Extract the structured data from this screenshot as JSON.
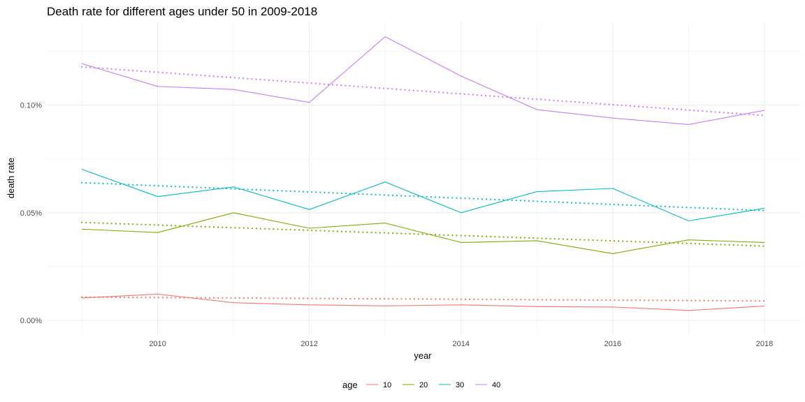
{
  "chart_data": {
    "type": "line",
    "title": "Death rate for different ages under 50 in 2009-2018",
    "xlabel": "year",
    "ylabel": "death rate",
    "xlim": [
      2009,
      2018
    ],
    "ylim": [
      0,
      0.00132
    ],
    "x_ticks": [
      2010,
      2012,
      2014,
      2016,
      2018
    ],
    "x_tick_labels": [
      "2010",
      "2012",
      "2014",
      "2016",
      "2018"
    ],
    "y_ticks": [
      0,
      0.0005,
      0.001
    ],
    "y_tick_labels": [
      "0.00%",
      "0.05%",
      "0.10%"
    ],
    "grid": true,
    "legend": {
      "position": "bottom",
      "title": "age",
      "entries": [
        "10",
        "20",
        "30",
        "40"
      ]
    },
    "x": [
      2009,
      2010,
      2011,
      2012,
      2013,
      2014,
      2015,
      2016,
      2017,
      2018
    ],
    "series": [
      {
        "name": "10",
        "color": "#F8766D",
        "values": [
          0.000104,
          0.000122,
          8.2e-05,
          7.2e-05,
          6.7e-05,
          7.2e-05,
          6.4e-05,
          6.2e-05,
          4.6e-05,
          6.6e-05
        ],
        "trend": [
          0.000108,
          9e-05
        ]
      },
      {
        "name": "20",
        "color": "#7CAE00",
        "values": [
          0.000424,
          0.000408,
          0.0005,
          0.000428,
          0.000452,
          0.000362,
          0.00037,
          0.00031,
          0.000374,
          0.000362
        ],
        "trend": [
          0.000455,
          0.000345
        ]
      },
      {
        "name": "30",
        "color": "#00BFC4",
        "values": [
          0.000702,
          0.000575,
          0.00062,
          0.000515,
          0.000643,
          0.0005,
          0.000598,
          0.000613,
          0.000462,
          0.000521
        ],
        "trend": [
          0.00064,
          0.00051
        ]
      },
      {
        "name": "40",
        "color": "#C77CFF",
        "values": [
          0.001193,
          0.001087,
          0.001073,
          0.001013,
          0.001318,
          0.001135,
          0.000979,
          0.00094,
          0.00091,
          0.000976
        ],
        "trend": [
          0.001178,
          0.000952
        ]
      }
    ]
  }
}
